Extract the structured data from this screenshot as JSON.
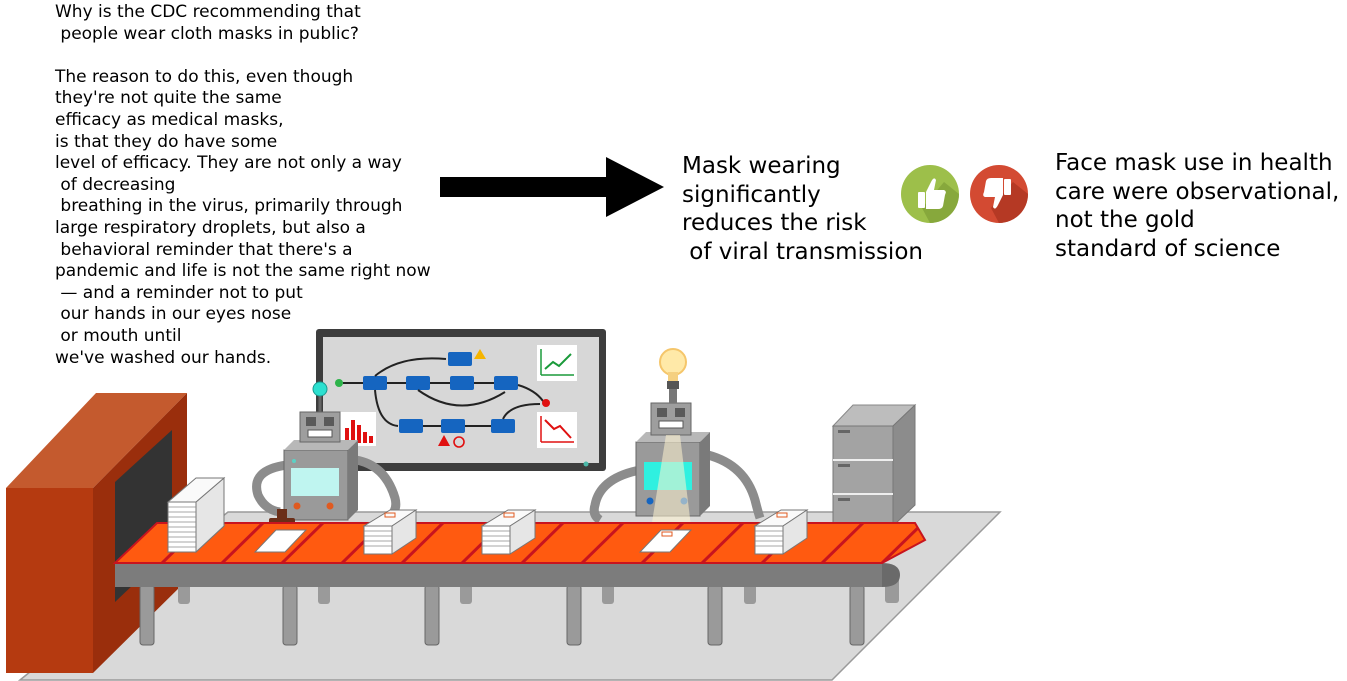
{
  "question": {
    "heading_lines": [
      "Why is the CDC recommending that",
      " people wear cloth masks in public?"
    ],
    "answer_lines": [
      "The reason to do this, even though",
      "they're not quite the same",
      "efficacy as medical masks,",
      "is that they do have some",
      "level of efficacy. They are not only a way",
      " of decreasing",
      " breathing in the virus, primarily through",
      "large respiratory droplets, but also a",
      " behavioral reminder that there's a",
      "pandemic and life is not the same right now",
      " — and a reminder not to put",
      " our hands in our eyes nose",
      " or mouth until",
      "we've washed our hands."
    ]
  },
  "claim": {
    "lines": [
      "Mask wearing",
      "significantly",
      "reduces the risk",
      " of viral transmission"
    ]
  },
  "counter_argument": {
    "lines": [
      "Face mask use in health",
      "care were observational,",
      "not the gold",
      "standard of science"
    ]
  },
  "icons": {
    "arrow": "right-arrow-icon",
    "approve": "thumbs-up-icon",
    "reject": "thumbs-down-icon",
    "illustration": "robot-assembly-line-illustration"
  },
  "colors": {
    "approve": "#9dbf4a",
    "reject": "#d34a32",
    "belt": "#ff5a10",
    "belt_stripe": "#c8141e",
    "robot": "#8c8c8c",
    "screen": "#bff5f0",
    "workflow_node": "#1565c0"
  }
}
